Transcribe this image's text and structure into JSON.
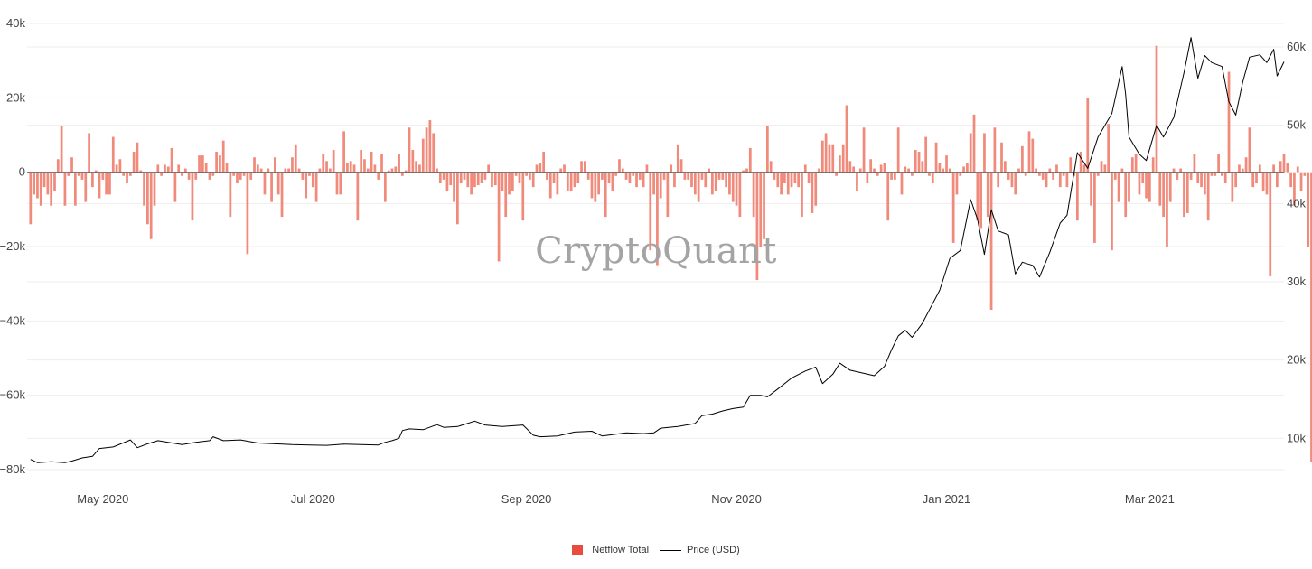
{
  "watermark": "CryptoQuant",
  "legend": {
    "netflow_label": "Netflow Total",
    "price_label": "Price (USD)"
  },
  "colors": {
    "netflow": "#f08a7b",
    "netflow_swatch": "#e84c3d",
    "price": "#000000",
    "grid": "#eeeeee"
  },
  "chart_data": {
    "type": "bar",
    "title": "",
    "x_range": [
      "2020-04-09",
      "2021-04-09"
    ],
    "x_ticks": [
      {
        "date": "2020-05-01",
        "label": "May 2020"
      },
      {
        "date": "2020-07-01",
        "label": "Jul 2020"
      },
      {
        "date": "2020-09-01",
        "label": "Sep 2020"
      },
      {
        "date": "2020-11-01",
        "label": "Nov 2020"
      },
      {
        "date": "2021-01-01",
        "label": "Jan 2021"
      },
      {
        "date": "2021-03-01",
        "label": "Mar 2021"
      }
    ],
    "y_left": {
      "min": -80000,
      "max": 40000,
      "ticks": [
        {
          "value": 40000,
          "label": "40k"
        },
        {
          "value": 20000,
          "label": "20k"
        },
        {
          "value": 0,
          "label": "0"
        },
        {
          "value": -20000,
          "label": "−20k"
        },
        {
          "value": -40000,
          "label": "−40k"
        },
        {
          "value": -60000,
          "label": "−60k"
        },
        {
          "value": -80000,
          "label": "−80k"
        }
      ]
    },
    "y_right": {
      "min": 6000,
      "max": 63000,
      "ticks": [
        {
          "value": 60000,
          "label": "60k"
        },
        {
          "value": 50000,
          "label": "50k"
        },
        {
          "value": 40000,
          "label": "40k"
        },
        {
          "value": 30000,
          "label": "30k"
        },
        {
          "value": 20000,
          "label": "20k"
        },
        {
          "value": 10000,
          "label": "10k"
        }
      ]
    },
    "series": [
      {
        "name": "Netflow Total",
        "type": "bar",
        "axis": "left",
        "start_date": "2020-04-10",
        "values": [
          -14000,
          -6000,
          -7000,
          -9000,
          -4000,
          -6000,
          -9000,
          -5000,
          3500,
          12500,
          -9000,
          -1000,
          4000,
          -9000,
          -1000,
          -2000,
          -8000,
          10500,
          -4000,
          500,
          -7000,
          -2000,
          -6000,
          -6000,
          9500,
          2000,
          3500,
          -1000,
          -3000,
          -1000,
          5500,
          8000,
          500,
          -9000,
          -14000,
          -18000,
          -9000,
          2000,
          -1000,
          2000,
          1500,
          6500,
          -8000,
          2000,
          -1000,
          1000,
          -2000,
          -13000,
          -2000,
          4500,
          4500,
          2500,
          -2000,
          -1000,
          5500,
          4500,
          8500,
          2500,
          -12000,
          -1000,
          -3000,
          -2000,
          -1000,
          -22000,
          -2000,
          4000,
          2000,
          1000,
          -6000,
          1000,
          -8000,
          4000,
          -6000,
          -12000,
          1000,
          1000,
          4000,
          7500,
          1000,
          -2000,
          -7000,
          -1000,
          -4000,
          -8000,
          1000,
          5000,
          3000,
          1000,
          6000,
          -6000,
          -6000,
          11000,
          2500,
          3000,
          2000,
          -13000,
          6000,
          3500,
          1000,
          5500,
          2000,
          -2000,
          5000,
          -8000,
          500,
          1000,
          1500,
          5000,
          -1000,
          500,
          12000,
          6000,
          3000,
          2000,
          9000,
          12000,
          14000,
          10500,
          1000,
          -3000,
          -2000,
          -5000,
          -3500,
          -8000,
          -14000,
          -3000,
          -2000,
          -4000,
          -6000,
          -4000,
          -3500,
          -3000,
          -2000,
          2000,
          -4000,
          -3500,
          -24000,
          -5000,
          -12000,
          -6000,
          -5000,
          -1000,
          -3000,
          -13000,
          -1000,
          -2000,
          -4000,
          2000,
          2500,
          5500,
          -2000,
          -7000,
          -3000,
          -6000,
          1000,
          2000,
          -5000,
          -5000,
          -4000,
          -3000,
          3000,
          3000,
          -2000,
          -7000,
          -8000,
          -6000,
          -2000,
          -12000,
          -3000,
          -5000,
          -1000,
          3500,
          1000,
          -2000,
          -3000,
          -1000,
          -4000,
          -2000,
          -4000,
          2000,
          -21000,
          -6000,
          -25000,
          -7000,
          -2000,
          -12000,
          2000,
          -4000,
          7500,
          3500,
          -2000,
          -2000,
          -4000,
          -6000,
          -8000,
          -2000,
          -4000,
          1000,
          -6000,
          -5000,
          -2000,
          -2000,
          -4000,
          -6000,
          -8000,
          -9000,
          -12000,
          500,
          1000,
          6500,
          -12000,
          -29000,
          -20000,
          -18000,
          12500,
          3000,
          -2000,
          -4000,
          -6000,
          -3000,
          -6000,
          -4000,
          -3000,
          -4000,
          -12000,
          2000,
          -3000,
          -11000,
          -9000,
          1000,
          8500,
          10500,
          7500,
          7500,
          -1000,
          4500,
          7500,
          18000,
          3000,
          1500,
          -5000,
          1000,
          12000,
          -3000,
          3500,
          1000,
          -1000,
          2000,
          2500,
          -13000,
          -2000,
          -2000,
          12000,
          -6000,
          1500,
          1000,
          -1000,
          6000,
          5500,
          3000,
          9500,
          -1000,
          -3000,
          8000,
          2500,
          1000,
          4500,
          1000,
          -19000,
          -6000,
          -1000,
          1500,
          2500,
          10500,
          15500,
          -13000,
          -15000,
          10500,
          -12000,
          -37000,
          12000,
          -4000,
          8000,
          3000,
          -2000,
          -4000,
          -6000,
          1000,
          7000,
          -1000,
          11000,
          9000,
          1000,
          -1000,
          -2000,
          -4000,
          1000,
          -2000,
          2000,
          -4000,
          -1000,
          -4000,
          4000,
          -1000,
          -13000,
          5500,
          2000,
          20000,
          -9000,
          -19000,
          -1000,
          3000,
          2000,
          13000,
          -21000,
          -2000,
          -8000,
          1000,
          -12000,
          -8000,
          4000,
          5000,
          -6000,
          -3000,
          -7000,
          -8000,
          4000,
          34000,
          -9000,
          -12000,
          -20000,
          -8000,
          1000,
          -2000,
          1000,
          -12000,
          -11000,
          -2000,
          5000,
          -3000,
          -4000,
          -6000,
          -13000,
          -1000,
          -1000,
          5000,
          -1000,
          -3000,
          27000,
          -8000,
          -4000,
          2000,
          1000,
          4000,
          12000,
          -4000,
          -3000,
          2000,
          -5000,
          -6000,
          -28000,
          2000,
          -4000,
          3000,
          5000,
          2500,
          -4000,
          -9000,
          1500,
          -5000,
          -1000,
          -20000,
          -78000,
          -5000,
          -1000
        ]
      },
      {
        "name": "Price (USD)",
        "type": "line",
        "axis": "right",
        "points": [
          [
            "2020-04-10",
            7300
          ],
          [
            "2020-04-12",
            6900
          ],
          [
            "2020-04-16",
            7000
          ],
          [
            "2020-04-20",
            6900
          ],
          [
            "2020-04-22",
            7100
          ],
          [
            "2020-04-25",
            7500
          ],
          [
            "2020-04-28",
            7700
          ],
          [
            "2020-04-30",
            8700
          ],
          [
            "2020-05-04",
            8900
          ],
          [
            "2020-05-09",
            9800
          ],
          [
            "2020-05-11",
            8800
          ],
          [
            "2020-05-14",
            9300
          ],
          [
            "2020-05-17",
            9700
          ],
          [
            "2020-05-20",
            9500
          ],
          [
            "2020-05-24",
            9200
          ],
          [
            "2020-05-28",
            9500
          ],
          [
            "2020-06-01",
            9700
          ],
          [
            "2020-06-02",
            10200
          ],
          [
            "2020-06-05",
            9700
          ],
          [
            "2020-06-10",
            9800
          ],
          [
            "2020-06-15",
            9400
          ],
          [
            "2020-06-20",
            9300
          ],
          [
            "2020-06-25",
            9200
          ],
          [
            "2020-06-30",
            9150
          ],
          [
            "2020-07-05",
            9100
          ],
          [
            "2020-07-10",
            9250
          ],
          [
            "2020-07-15",
            9200
          ],
          [
            "2020-07-20",
            9150
          ],
          [
            "2020-07-22",
            9500
          ],
          [
            "2020-07-24",
            9700
          ],
          [
            "2020-07-26",
            10000
          ],
          [
            "2020-07-27",
            11000
          ],
          [
            "2020-07-29",
            11200
          ],
          [
            "2020-08-02",
            11100
          ],
          [
            "2020-08-06",
            11750
          ],
          [
            "2020-08-08",
            11400
          ],
          [
            "2020-08-12",
            11500
          ],
          [
            "2020-08-17",
            12200
          ],
          [
            "2020-08-20",
            11700
          ],
          [
            "2020-08-25",
            11500
          ],
          [
            "2020-08-31",
            11700
          ],
          [
            "2020-09-03",
            10400
          ],
          [
            "2020-09-05",
            10200
          ],
          [
            "2020-09-10",
            10300
          ],
          [
            "2020-09-15",
            10800
          ],
          [
            "2020-09-20",
            10900
          ],
          [
            "2020-09-23",
            10300
          ],
          [
            "2020-09-30",
            10700
          ],
          [
            "2020-10-05",
            10600
          ],
          [
            "2020-10-08",
            10700
          ],
          [
            "2020-10-10",
            11300
          ],
          [
            "2020-10-15",
            11500
          ],
          [
            "2020-10-20",
            11900
          ],
          [
            "2020-10-22",
            12900
          ],
          [
            "2020-10-25",
            13100
          ],
          [
            "2020-10-28",
            13500
          ],
          [
            "2020-10-31",
            13800
          ],
          [
            "2020-11-03",
            14000
          ],
          [
            "2020-11-05",
            15500
          ],
          [
            "2020-11-08",
            15500
          ],
          [
            "2020-11-10",
            15300
          ],
          [
            "2020-11-13",
            16300
          ],
          [
            "2020-11-17",
            17700
          ],
          [
            "2020-11-21",
            18600
          ],
          [
            "2020-11-24",
            19100
          ],
          [
            "2020-11-26",
            17000
          ],
          [
            "2020-11-29",
            18200
          ],
          [
            "2020-12-01",
            19600
          ],
          [
            "2020-12-04",
            18700
          ],
          [
            "2020-12-08",
            18300
          ],
          [
            "2020-12-11",
            18000
          ],
          [
            "2020-12-14",
            19200
          ],
          [
            "2020-12-16",
            21300
          ],
          [
            "2020-12-18",
            23100
          ],
          [
            "2020-12-20",
            23800
          ],
          [
            "2020-12-22",
            22900
          ],
          [
            "2020-12-25",
            24700
          ],
          [
            "2020-12-27",
            26400
          ],
          [
            "2020-12-30",
            28900
          ],
          [
            "2021-01-02",
            33000
          ],
          [
            "2021-01-05",
            34000
          ],
          [
            "2021-01-08",
            40500
          ],
          [
            "2021-01-10",
            38000
          ],
          [
            "2021-01-12",
            33500
          ],
          [
            "2021-01-14",
            39200
          ],
          [
            "2021-01-16",
            36500
          ],
          [
            "2021-01-19",
            36000
          ],
          [
            "2021-01-21",
            31000
          ],
          [
            "2021-01-23",
            32500
          ],
          [
            "2021-01-26",
            32100
          ],
          [
            "2021-01-28",
            30600
          ],
          [
            "2021-01-31",
            33800
          ],
          [
            "2021-02-03",
            37500
          ],
          [
            "2021-02-05",
            38500
          ],
          [
            "2021-02-08",
            46500
          ],
          [
            "2021-02-11",
            44500
          ],
          [
            "2021-02-14",
            48500
          ],
          [
            "2021-02-18",
            51500
          ],
          [
            "2021-02-21",
            57500
          ],
          [
            "2021-02-22",
            54000
          ],
          [
            "2021-02-23",
            48500
          ],
          [
            "2021-02-26",
            46300
          ],
          [
            "2021-02-28",
            45500
          ],
          [
            "2021-03-03",
            50000
          ],
          [
            "2021-03-05",
            48500
          ],
          [
            "2021-03-08",
            51000
          ],
          [
            "2021-03-11",
            56800
          ],
          [
            "2021-03-13",
            61200
          ],
          [
            "2021-03-15",
            56000
          ],
          [
            "2021-03-17",
            58900
          ],
          [
            "2021-03-19",
            58000
          ],
          [
            "2021-03-22",
            57500
          ],
          [
            "2021-03-24",
            53000
          ],
          [
            "2021-03-26",
            51300
          ],
          [
            "2021-03-28",
            55500
          ],
          [
            "2021-03-30",
            58700
          ],
          [
            "2021-04-02",
            59000
          ],
          [
            "2021-04-04",
            58000
          ],
          [
            "2021-04-06",
            59700
          ],
          [
            "2021-04-07",
            56300
          ],
          [
            "2021-04-09",
            58100
          ]
        ]
      }
    ],
    "legend_position": "bottom-center",
    "grid": true
  }
}
